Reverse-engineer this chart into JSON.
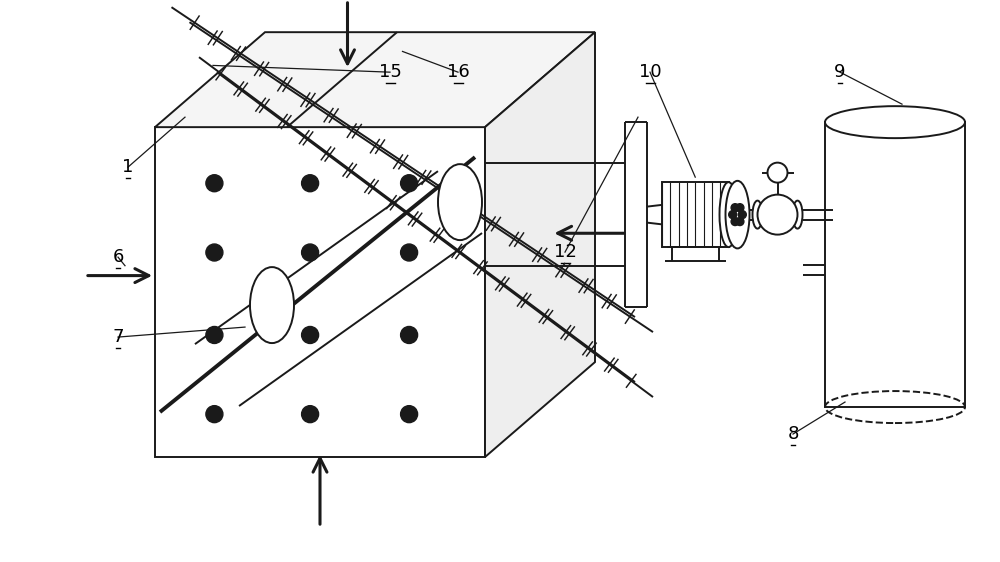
{
  "bg_color": "#ffffff",
  "line_color": "#1a1a1a",
  "label_color": "#000000",
  "fig_width": 10.0,
  "fig_height": 5.62,
  "font_size": 13
}
